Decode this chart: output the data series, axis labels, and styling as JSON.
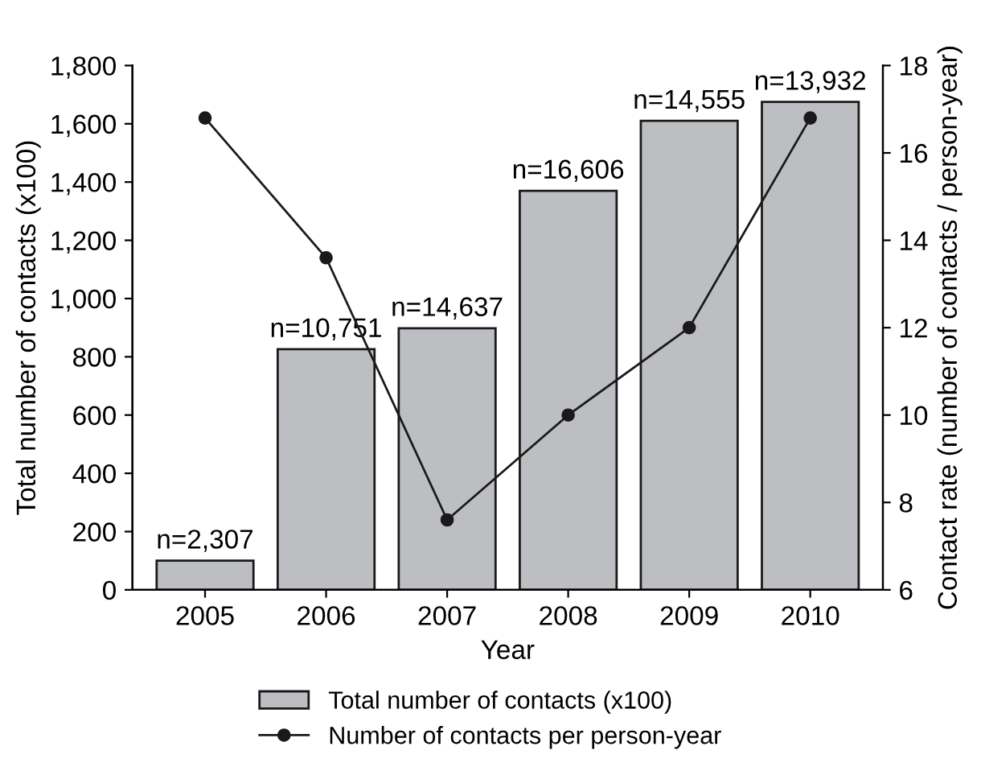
{
  "chart_data": {
    "type": "bar",
    "xlabel": "Year",
    "ylabel": "Total number of contacts (x100)",
    "y2label": "Contact rate (number of contacts / person-year)",
    "categories": [
      "2005",
      "2006",
      "2007",
      "2008",
      "2009",
      "2010"
    ],
    "series": [
      {
        "name": "Total number of contacts (x100)",
        "color": "#bdbec2",
        "values": [
          100,
          826,
          898,
          1370,
          1610,
          1675
        ]
      },
      {
        "name": "Number of contacts per person-year",
        "type": "line",
        "axis": "y2",
        "color": "#1a1a1a",
        "marker": "circle",
        "line_style": "solid",
        "values": [
          16.8,
          13.6,
          7.6,
          10.0,
          12.0,
          16.8
        ]
      }
    ],
    "annotations": [
      {
        "text": "n=2,307",
        "x": "2005",
        "y": 100
      },
      {
        "text": "n=10,751",
        "x": "2006",
        "y": 826
      },
      {
        "text": "n=14,637",
        "x": "2007",
        "y": 898
      },
      {
        "text": "n=16,606",
        "x": "2008",
        "y": 1370
      },
      {
        "text": "n=14,555",
        "x": "2009",
        "y": 1610
      },
      {
        "text": "n=13,932",
        "x": "2010",
        "y": 1675
      }
    ],
    "ylim": [
      0,
      1800
    ],
    "yticks": [
      {
        "value": 0,
        "label": "0"
      },
      {
        "value": 200,
        "label": "200"
      },
      {
        "value": 400,
        "label": "400"
      },
      {
        "value": 600,
        "label": "600"
      },
      {
        "value": 800,
        "label": "800"
      },
      {
        "value": 1000,
        "label": "1,000"
      },
      {
        "value": 1200,
        "label": "1,200"
      },
      {
        "value": 1400,
        "label": "1,400"
      },
      {
        "value": 1600,
        "label": "1,600"
      },
      {
        "value": 1800,
        "label": "1,800"
      }
    ],
    "y2lim": [
      6,
      18
    ],
    "y2ticks": [
      6,
      8,
      10,
      12,
      14,
      16,
      18
    ],
    "grid": false,
    "legend": "bottom"
  }
}
